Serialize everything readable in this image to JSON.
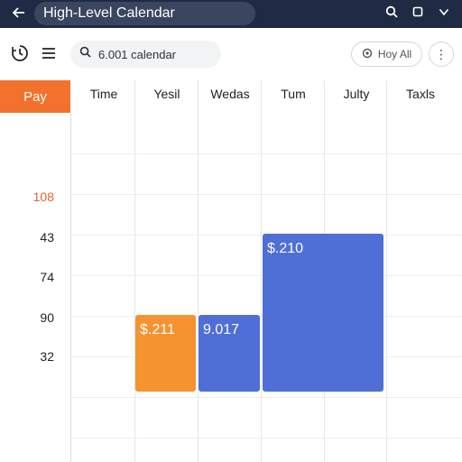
{
  "topbar": {
    "back_icon": "arrow-left-icon",
    "title": "High-Level Calendar",
    "actions": [
      "search-icon",
      "square-icon",
      "chevron-down-icon"
    ]
  },
  "toolbar": {
    "history_icon": "history-icon",
    "menu_icon": "hamburger-icon",
    "search": {
      "icon": "search-icon",
      "value": "6.001 calendar"
    },
    "account_button": {
      "icon": "gear-icon",
      "label": "Hoy All"
    },
    "more_icon": "more-vertical-icon"
  },
  "calendar": {
    "corner_label": "Pay",
    "columns": [
      "Time",
      "Yesil",
      "Wedas",
      "Tum",
      "Julty",
      "Taxls"
    ],
    "row_labels": [
      "108",
      "43",
      "74",
      "90",
      "32"
    ],
    "events": [
      {
        "label": "$.211",
        "color": "#f59331"
      },
      {
        "label": "9.017",
        "color": "#4f6fd7"
      },
      {
        "label": "$.210",
        "color": "#4f6fd7"
      }
    ]
  },
  "colors": {
    "topbar": "#1f2a44",
    "accent": "#f2722d",
    "highlight_label": "#e0652a",
    "event_orange": "#f59331",
    "event_blue": "#4f6fd7"
  }
}
